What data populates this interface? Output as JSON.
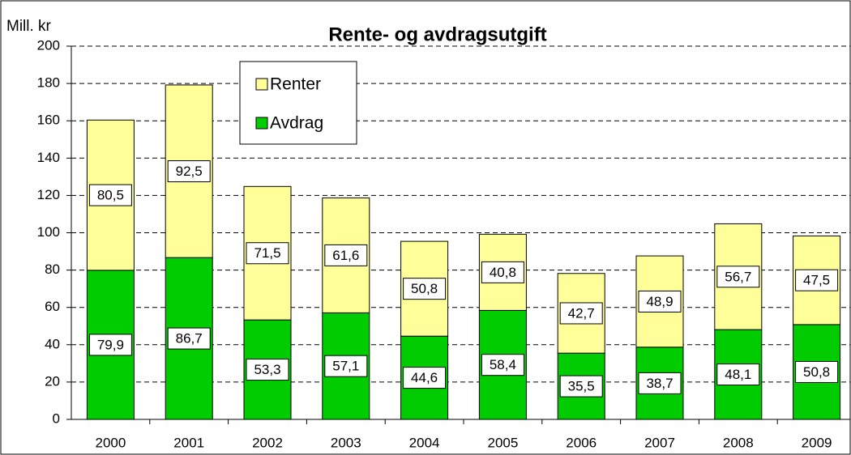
{
  "chart_data": {
    "type": "stacked_bar",
    "title": "Rente- og avdragsutgift",
    "y_label": "Mill. kr",
    "categories": [
      "2000",
      "2001",
      "2002",
      "2003",
      "2004",
      "2005",
      "2006",
      "2007",
      "2008",
      "2009"
    ],
    "series": [
      {
        "name": "Avdrag",
        "color": "#00cc00",
        "values": [
          79.9,
          86.7,
          53.3,
          57.1,
          44.6,
          58.4,
          35.5,
          38.7,
          48.1,
          50.8
        ],
        "value_labels": [
          "79,9",
          "86,7",
          "53,3",
          "57,1",
          "44,6",
          "58,4",
          "35,5",
          "38,7",
          "48,1",
          "50,8"
        ]
      },
      {
        "name": "Renter",
        "color": "#ffff99",
        "values": [
          80.5,
          92.5,
          71.5,
          61.6,
          50.8,
          40.8,
          42.7,
          48.9,
          56.7,
          47.5
        ],
        "value_labels": [
          "80,5",
          "92,5",
          "71,5",
          "61,6",
          "50,8",
          "40,8",
          "42,7",
          "48,9",
          "56,7",
          "47,5"
        ]
      }
    ],
    "ylim": [
      0,
      200
    ],
    "yticks": [
      0,
      20,
      40,
      60,
      80,
      100,
      120,
      140,
      160,
      180,
      200
    ],
    "grid": true
  }
}
